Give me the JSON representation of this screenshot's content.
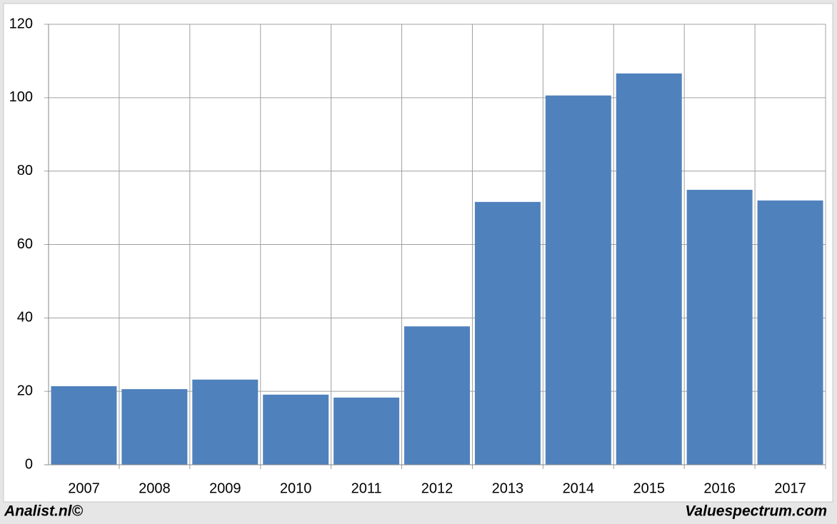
{
  "chart_data": {
    "type": "bar",
    "categories": [
      "2007",
      "2008",
      "2009",
      "2010",
      "2011",
      "2012",
      "2013",
      "2014",
      "2015",
      "2016",
      "2017"
    ],
    "values": [
      21.4,
      20.6,
      23.2,
      19.1,
      18.3,
      37.7,
      71.6,
      100.6,
      106.6,
      74.9,
      72.0
    ],
    "color": "#4f81bd",
    "ylim": [
      0,
      120
    ],
    "yticks": [
      0,
      20,
      40,
      60,
      80,
      100,
      120
    ],
    "grid": true,
    "source_left": "Analist.nl©",
    "source_right": "Valuespectrum.com"
  }
}
